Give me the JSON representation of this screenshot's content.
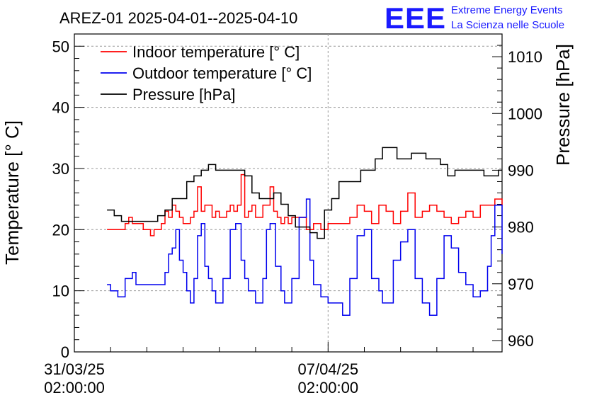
{
  "chart_data": {
    "type": "line",
    "title": "AREZ-01 2025-04-01--2025-04-10",
    "ylabel": "Temperature [° C]",
    "y2label": "Pressure [hPa]",
    "ylim": [
      0,
      52
    ],
    "y2lim": [
      958,
      1014
    ],
    "yticks": [
      "0",
      "10",
      "20",
      "30",
      "40",
      "50"
    ],
    "y2ticks": [
      "960",
      "970",
      "980",
      "990",
      "1000",
      "1010"
    ],
    "xticks": [
      {
        "line1": "31/03/25",
        "line2": "02:00:00",
        "day": 0
      },
      {
        "line1": "07/04/25",
        "line2": "02:00:00",
        "day": 7
      }
    ],
    "xlim_days": [
      0,
      11.8
    ],
    "grid": true,
    "legend_placement": "top-left",
    "series": [
      {
        "name": "Indoor temperature [° C]",
        "color": "#ff0000",
        "axis": "left",
        "x": [
          0.9,
          1.2,
          1.4,
          1.5,
          1.6,
          1.8,
          1.9,
          2.0,
          2.1,
          2.2,
          2.4,
          2.5,
          2.6,
          2.7,
          2.8,
          2.9,
          3.0,
          3.2,
          3.3,
          3.4,
          3.5,
          3.6,
          3.7,
          3.8,
          3.9,
          4.0,
          4.2,
          4.3,
          4.4,
          4.5,
          4.6,
          4.7,
          4.8,
          4.9,
          5.0,
          5.2,
          5.4,
          5.5,
          5.6,
          5.7,
          5.8,
          5.9,
          6.0,
          6.2,
          6.4,
          6.6,
          6.8,
          7.0,
          7.2,
          7.4,
          7.6,
          7.8,
          8.0,
          8.2,
          8.4,
          8.6,
          8.8,
          9.0,
          9.2,
          9.4,
          9.6,
          9.8,
          10.0,
          10.2,
          10.4,
          10.6,
          10.8,
          11.0,
          11.2,
          11.4,
          11.6,
          11.8
        ],
        "y": [
          20,
          20,
          21,
          22,
          21,
          21,
          20,
          20,
          19,
          20,
          21,
          23,
          22,
          24,
          23,
          22,
          21,
          22,
          23,
          27,
          23,
          24,
          24,
          22,
          23,
          22,
          23,
          24,
          23,
          24,
          29,
          22,
          23,
          24,
          22,
          24,
          27,
          23,
          22,
          21,
          22,
          21,
          22,
          22,
          20,
          21,
          20,
          21,
          21,
          21,
          22,
          24,
          23,
          21,
          24,
          23,
          21,
          23,
          26,
          22,
          23,
          24,
          23,
          22,
          21,
          22,
          23,
          22,
          24,
          24,
          25,
          24
        ]
      },
      {
        "name": "Outdoor temperature [° C]",
        "color": "#0000ee",
        "axis": "left",
        "x": [
          0.9,
          1.0,
          1.2,
          1.4,
          1.6,
          1.7,
          1.8,
          1.9,
          2.0,
          2.2,
          2.5,
          2.6,
          2.7,
          2.8,
          2.9,
          3.0,
          3.1,
          3.2,
          3.3,
          3.4,
          3.5,
          3.6,
          3.7,
          3.8,
          3.9,
          4.1,
          4.3,
          4.45,
          4.6,
          4.7,
          4.8,
          5.0,
          5.2,
          5.3,
          5.4,
          5.55,
          5.7,
          5.8,
          6.0,
          6.2,
          6.4,
          6.5,
          6.6,
          6.8,
          7.0,
          7.2,
          7.4,
          7.6,
          7.8,
          8.0,
          8.2,
          8.4,
          8.5,
          8.6,
          8.8,
          9.0,
          9.2,
          9.4,
          9.6,
          9.8,
          10.0,
          10.2,
          10.4,
          10.6,
          10.8,
          11.0,
          11.2,
          11.4,
          11.5,
          11.6,
          11.8
        ],
        "y": [
          11,
          10,
          9,
          12,
          13,
          11,
          11,
          11,
          11,
          11,
          13,
          16,
          17,
          20,
          15,
          13,
          10,
          8,
          12,
          19,
          21,
          14,
          12,
          10,
          8,
          12,
          20,
          21,
          15,
          12,
          10,
          8,
          12,
          20,
          21,
          14,
          10,
          8,
          12,
          22,
          25,
          15,
          11,
          9,
          8,
          8,
          6,
          12,
          19,
          20,
          12,
          10,
          8,
          8,
          15,
          18,
          20,
          12,
          8,
          6,
          12,
          19,
          17,
          13,
          11,
          9,
          10,
          14,
          19,
          24,
          16
        ]
      },
      {
        "name": "Pressure [hPa]",
        "color": "#000000",
        "axis": "right",
        "x": [
          0.9,
          1.1,
          1.3,
          1.5,
          1.7,
          1.9,
          2.1,
          2.3,
          2.5,
          2.7,
          2.9,
          3.1,
          3.3,
          3.5,
          3.7,
          3.9,
          4.1,
          4.3,
          4.5,
          4.7,
          4.9,
          5.1,
          5.3,
          5.5,
          5.7,
          5.9,
          6.1,
          6.3,
          6.5,
          6.7,
          6.9,
          7.1,
          7.3,
          7.5,
          7.7,
          7.9,
          8.1,
          8.3,
          8.5,
          8.7,
          8.9,
          9.1,
          9.3,
          9.5,
          9.7,
          9.9,
          10.1,
          10.3,
          10.5,
          10.7,
          10.9,
          11.1,
          11.3,
          11.5,
          11.7,
          11.8
        ],
        "y": [
          983,
          982,
          981,
          981,
          981,
          981,
          981,
          982,
          983,
          985,
          985,
          988,
          989,
          990,
          991,
          990,
          990,
          990,
          990,
          989,
          986,
          985,
          985,
          986,
          984,
          982,
          980,
          980,
          979,
          978,
          983,
          985,
          988,
          988,
          988,
          990,
          990,
          992,
          994,
          994,
          992,
          992,
          993,
          993,
          992,
          992,
          991,
          989,
          990,
          990,
          990,
          990,
          989,
          989,
          990,
          990
        ]
      }
    ]
  },
  "logo": {
    "mark": "EEE",
    "line1": "Extreme Energy Events",
    "line2": "La Scienza nelle Scuole"
  }
}
